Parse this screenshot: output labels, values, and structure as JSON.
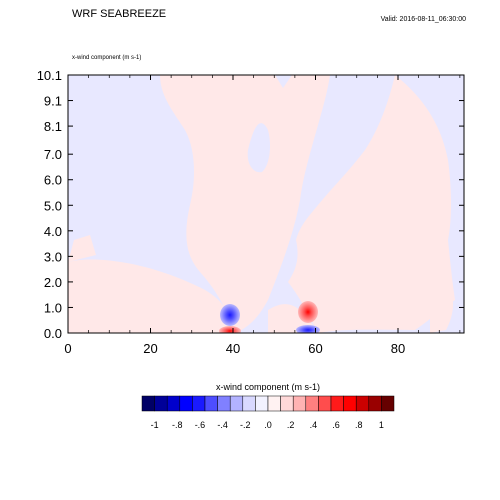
{
  "header": {
    "title": "WRF SEABREEZE",
    "valid": "Valid: 2016-08-11_06:30:00"
  },
  "plot": {
    "label": "x-wind component   (m s-1)"
  },
  "chart_data": {
    "type": "heatmap",
    "title": "WRF SEABREEZE",
    "subtitle": "x-wind component   (m s-1)",
    "xlim": [
      0,
      96
    ],
    "ylim": [
      0,
      10.1
    ],
    "x_ticks": [
      "0",
      "20",
      "40",
      "60",
      "80"
    ],
    "y_ticks": [
      "0.0",
      "1.0",
      "2.0",
      "3.0",
      "4.0",
      "5.0",
      "6.0",
      "7.0",
      "8.1",
      "9.1",
      "10.1"
    ],
    "y_tick_values": [
      0,
      1,
      2,
      3,
      4,
      5,
      6,
      7,
      8.1,
      9.1,
      10.1
    ],
    "x_tick_values": [
      0,
      20,
      40,
      60,
      80
    ],
    "background_level": "-0.1 to 0.0 (pale blue)",
    "features": [
      {
        "kind": "positive",
        "color": "#FFE8E8",
        "desc": "pale red region, left low-level wedge"
      },
      {
        "kind": "positive",
        "color": "#FFE8E8",
        "desc": "pale red central upper region"
      },
      {
        "kind": "negative_peak",
        "x": 38,
        "y": 0.8,
        "value": -0.5
      },
      {
        "kind": "positive_peak",
        "x": 38,
        "y": 0.3,
        "value": 0.5
      },
      {
        "kind": "positive_peak",
        "x": 58,
        "y": 1.0,
        "value": 0.5
      },
      {
        "kind": "negative_peak",
        "x": 58,
        "y": 0.3,
        "value": -0.6
      }
    ],
    "colorbar": {
      "label": "x-wind component  (m s-1)",
      "tick_labels": [
        "-1",
        "-.8",
        "-.6",
        "-.4",
        "-.2",
        ".0",
        ".2",
        ".4",
        ".6",
        ".8",
        "1"
      ],
      "colors": [
        "#000066",
        "#000099",
        "#0000CC",
        "#0000FF",
        "#1A1AFF",
        "#4D4DFF",
        "#8080FF",
        "#B3B3FF",
        "#D9D9FF",
        "#F2F2FF",
        "#FFF2F2",
        "#FFD9D9",
        "#FFB3B3",
        "#FF8080",
        "#FF4D4D",
        "#FF1A1A",
        "#FF0000",
        "#CC0000",
        "#990000",
        "#660000"
      ]
    }
  }
}
